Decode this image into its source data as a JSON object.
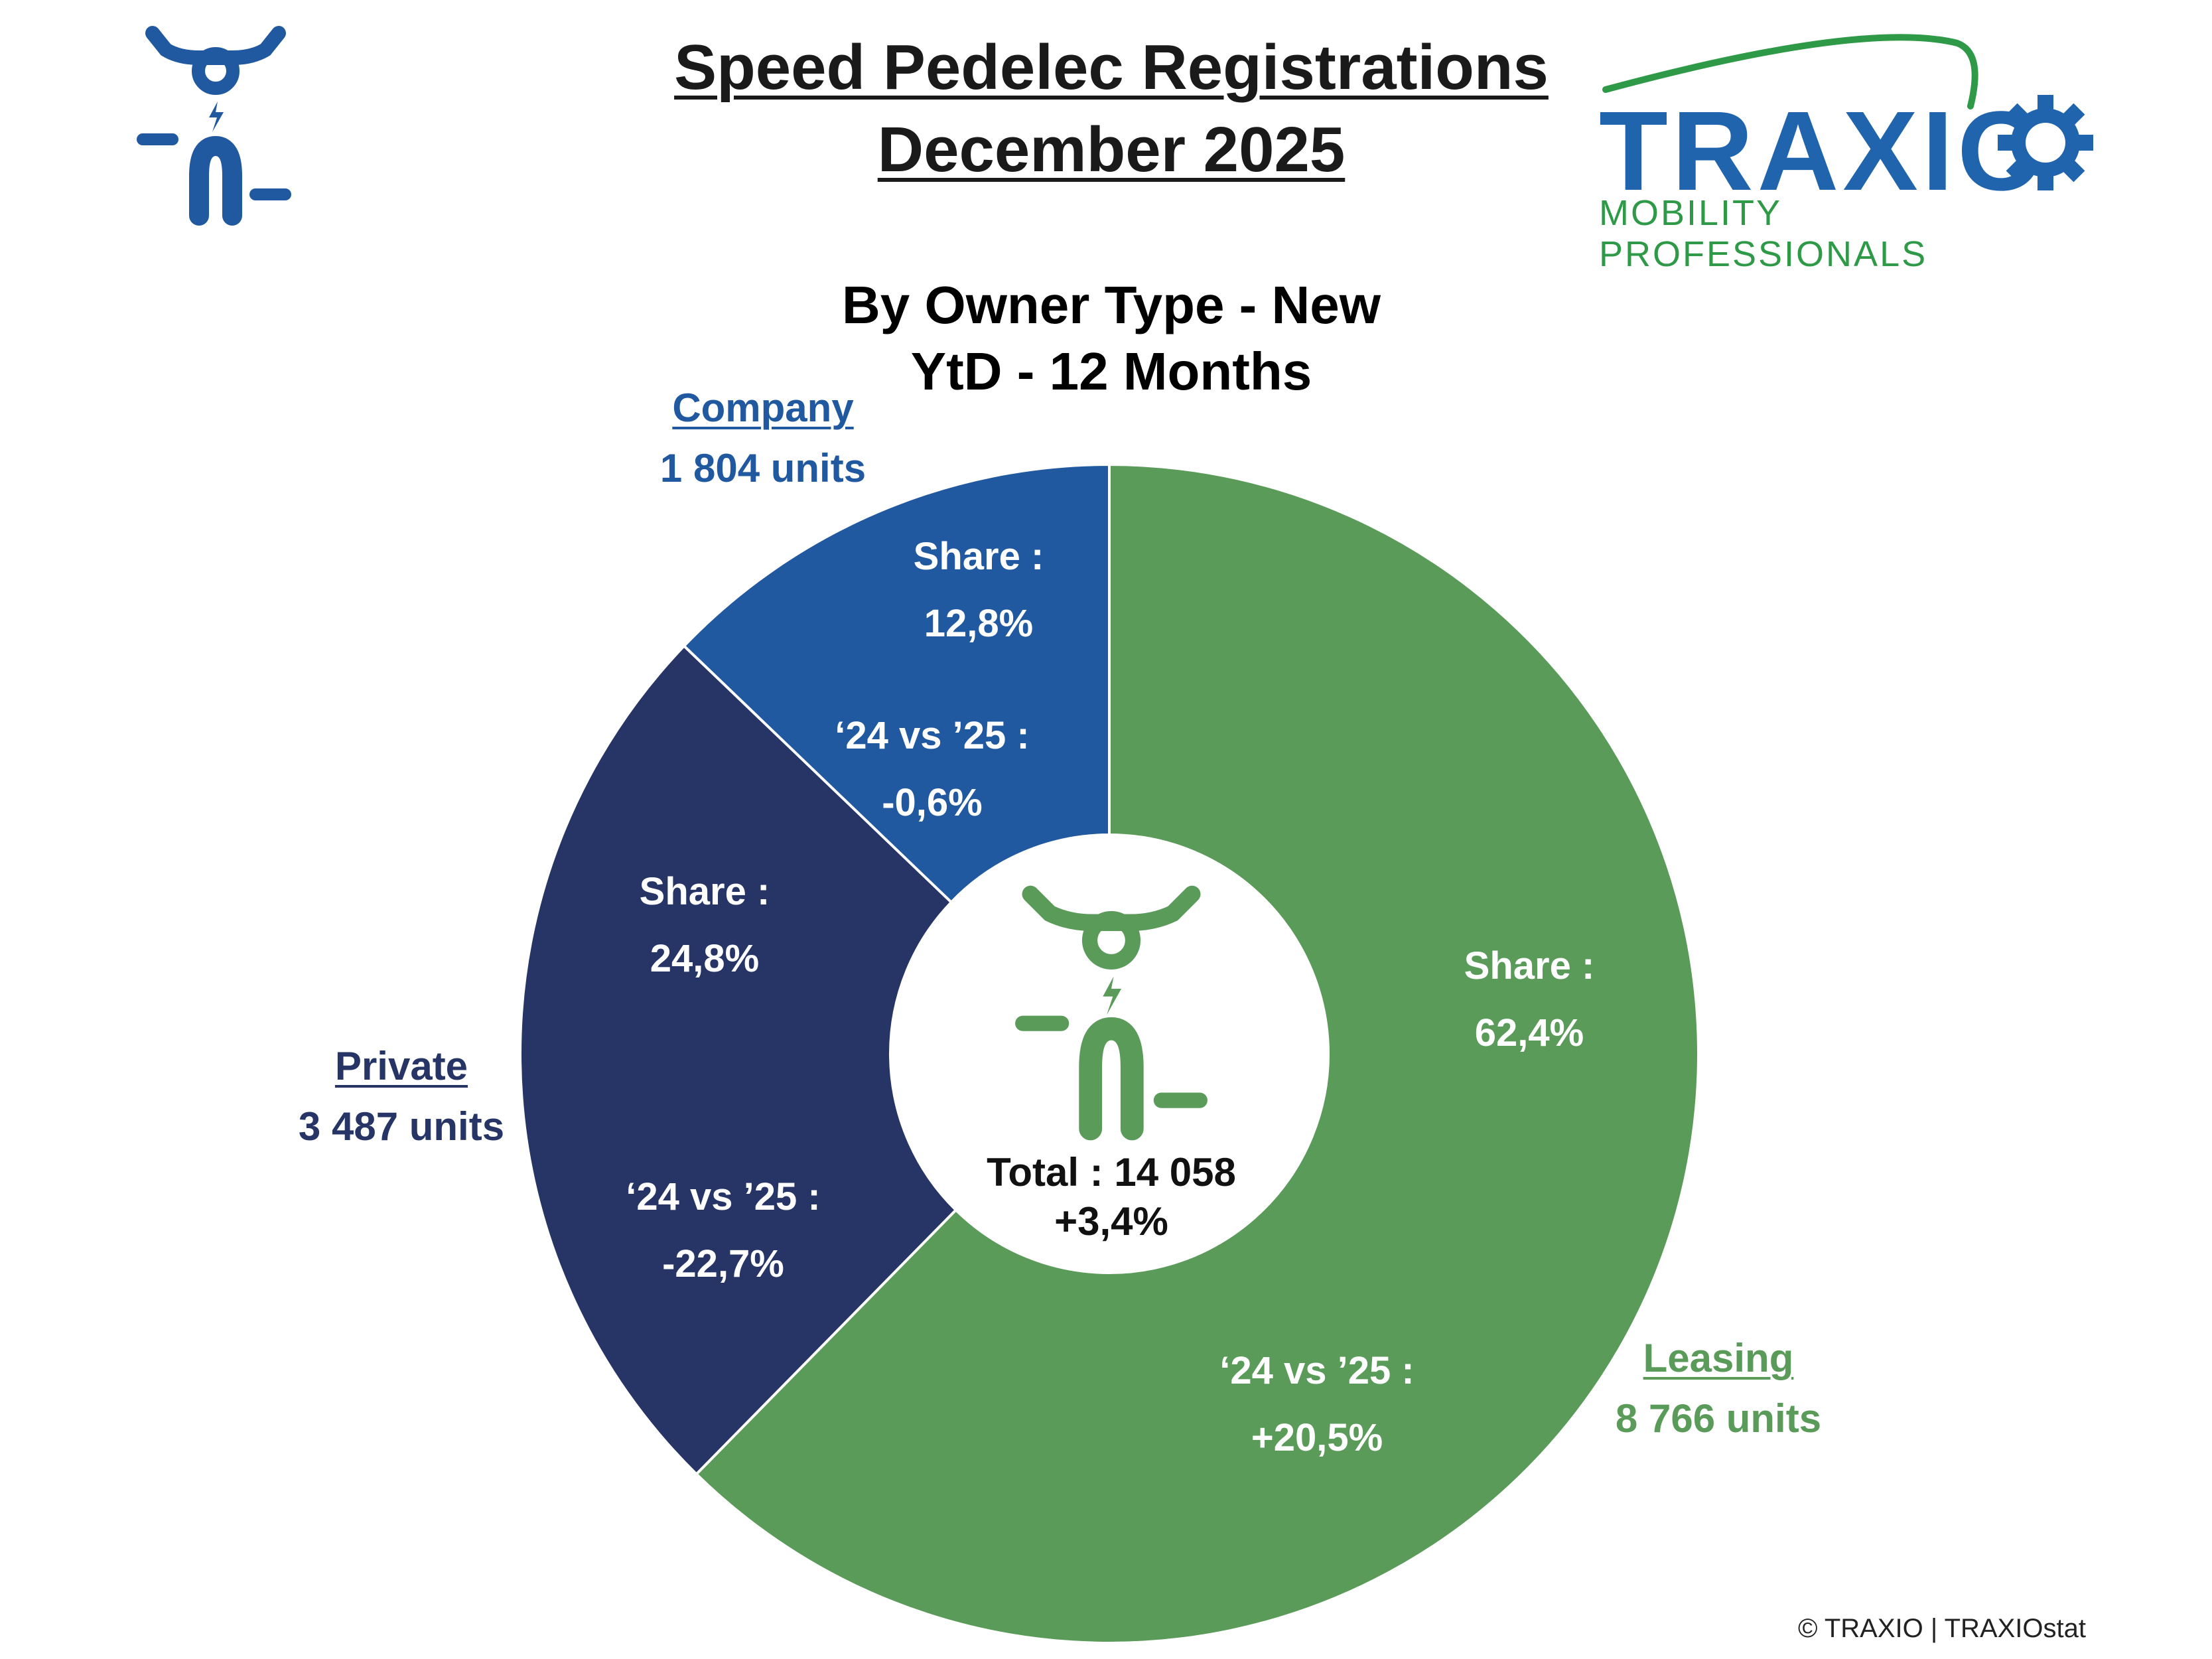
{
  "header": {
    "title_line1": "Speed Pedelec Registrations",
    "title_line2": "December 2025"
  },
  "logo": {
    "brand_text": "TRAXIO",
    "tagline": "MOBILITY PROFESSIONALS",
    "icon": "gear-icon"
  },
  "chart_data": {
    "type": "pie",
    "variant": "donut",
    "title_line1": "By Owner Type - New",
    "title_line2": "YtD - 12 Months",
    "total_label": "Total : 14 058",
    "total_change": "+3,4%",
    "slices": [
      {
        "name": "Leasing",
        "units": 8766,
        "units_label": "8 766 units",
        "share": 62.4,
        "share_label": "62,4%",
        "change_label": "+20,5%",
        "color": "#5a9b5a",
        "label_color": "#5a9b5a"
      },
      {
        "name": "Private",
        "units": 3487,
        "units_label": "3 487 units",
        "share": 24.8,
        "share_label": "24,8%",
        "change_label": "-22,7%",
        "color": "#263566",
        "label_color": "#263566"
      },
      {
        "name": "Company",
        "units": 1804,
        "units_label": "1 804 units",
        "share": 12.8,
        "share_label": "12,8%",
        "change_label": "-0,6%",
        "color": "#2159a0",
        "label_color": "#2159a0"
      }
    ],
    "share_prefix": "Share :",
    "change_prefix": "‘24 vs ’25 :"
  },
  "icons": {
    "header_icon": "speed-pedelec-icon",
    "center_icon": "speed-pedelec-icon"
  },
  "colors": {
    "icon_blue": "#2159a0",
    "icon_green": "#5a9b5a",
    "brand_blue": "#1f64ad",
    "brand_green": "#2e9a47"
  },
  "footer": {
    "copyright": "© TRAXIO | TRAXIOstat"
  }
}
